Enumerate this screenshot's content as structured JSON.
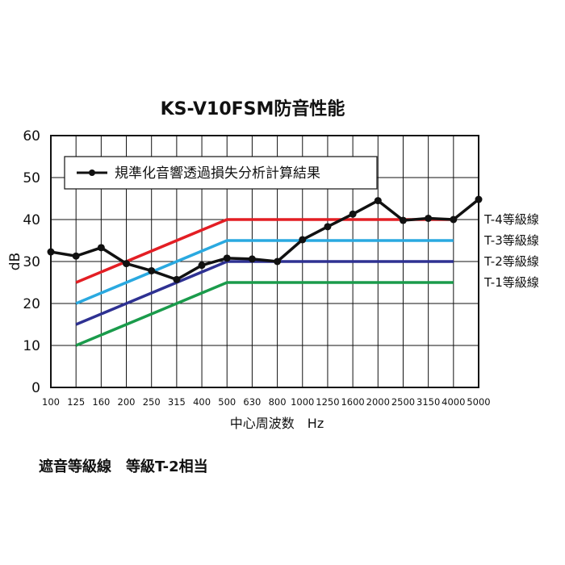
{
  "chart_data": {
    "type": "line",
    "title": "KS-V10FSM防音性能",
    "xlabel": "中心周波数　Hz",
    "ylabel": "dB",
    "ylim": [
      0,
      60
    ],
    "yticks": [
      0,
      10,
      20,
      30,
      40,
      50,
      60
    ],
    "categories": [
      "100",
      "125",
      "160",
      "200",
      "250",
      "315",
      "400",
      "500",
      "630",
      "800",
      "1000",
      "1250",
      "1600",
      "2000",
      "2500",
      "3150",
      "4000",
      "5000"
    ],
    "grid": true,
    "legend_position": "top-left",
    "series": [
      {
        "name": "規準化音響透過損失分析計算結果",
        "color": "#111111",
        "markers": true,
        "values": [
          32.3,
          31.3,
          33.3,
          29.5,
          27.8,
          25.7,
          29.1,
          30.8,
          30.6,
          30.0,
          35.2,
          38.3,
          41.3,
          44.5,
          39.8,
          40.3,
          40.0,
          44.8
        ]
      }
    ],
    "reference_lines": [
      {
        "name": "T-4等級線",
        "color": "#e31e24",
        "x": [
          "125",
          "500",
          "4000"
        ],
        "values": [
          25,
          40,
          40
        ]
      },
      {
        "name": "T-3等級線",
        "color": "#2aa9e0",
        "x": [
          "125",
          "500",
          "4000"
        ],
        "values": [
          20,
          35,
          35
        ]
      },
      {
        "name": "T-2等級線",
        "color": "#2e3192",
        "x": [
          "125",
          "500",
          "4000"
        ],
        "values": [
          15,
          30,
          30
        ]
      },
      {
        "name": "T-1等級線",
        "color": "#1a9b4b",
        "x": [
          "125",
          "500",
          "4000"
        ],
        "values": [
          10,
          25,
          25
        ]
      }
    ]
  },
  "caption": "遮音等級線　等級T-2相当"
}
